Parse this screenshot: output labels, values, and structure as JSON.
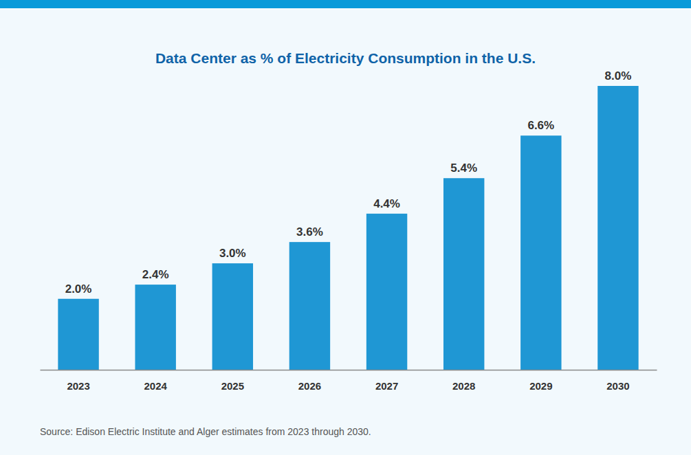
{
  "chart_data": {
    "type": "bar",
    "title": "Data Center as % of Electricity Consumption in the U.S.",
    "categories": [
      "2023",
      "2024",
      "2025",
      "2026",
      "2027",
      "2028",
      "2029",
      "2030"
    ],
    "values": [
      2.0,
      2.4,
      3.0,
      3.6,
      4.4,
      5.4,
      6.6,
      8.0
    ],
    "value_labels": [
      "2.0%",
      "2.4%",
      "3.0%",
      "3.6%",
      "4.4%",
      "5.4%",
      "6.6%",
      "8.0%"
    ],
    "color": "#1f97d4",
    "ylim": [
      0,
      8
    ],
    "data_labels": true,
    "tick_labels": "x",
    "grid": false,
    "source": "Source: Edison Electric Institute and Alger estimates from 2023 through 2030."
  }
}
